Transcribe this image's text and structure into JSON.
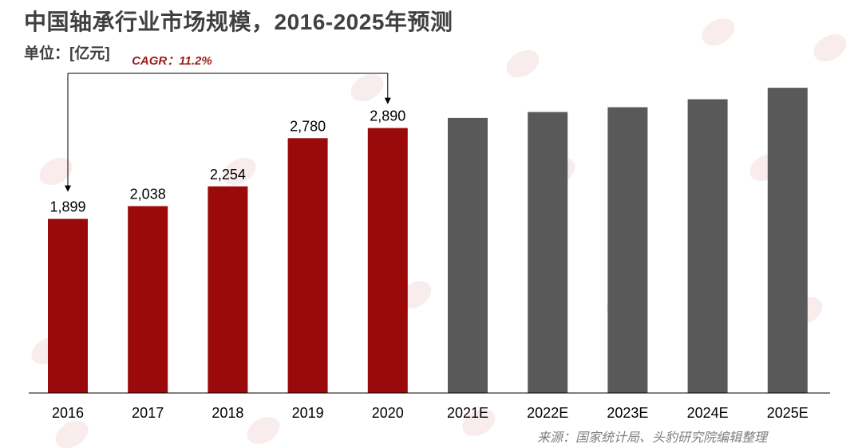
{
  "header": {
    "title": "中国轴承行业市场规模，2016-2025年预测",
    "unit": "单位：[亿元]"
  },
  "footer": {
    "source": "来源：国家统计局、头豹研究院编辑整理"
  },
  "colors": {
    "actual": "#9b0a0a",
    "forecast": "#595959",
    "axis": "#000000",
    "cagr_text": "#9b1b1b"
  },
  "chart_data": {
    "type": "bar",
    "title": "中国轴承行业市场规模，2016-2025年预测",
    "ylabel": "单位：[亿元]",
    "categories": [
      "2016",
      "2017",
      "2018",
      "2019",
      "2020",
      "2021E",
      "2022E",
      "2023E",
      "2024E",
      "2025E"
    ],
    "values": [
      1899,
      2038,
      2254,
      2780,
      2890,
      3001,
      3065,
      3117,
      3204,
      3330
    ],
    "data_labels": [
      "1,899",
      "2,038",
      "2,254",
      "2,780",
      "2,890",
      "",
      "",
      "",
      "",
      ""
    ],
    "series_type": [
      "actual",
      "actual",
      "actual",
      "actual",
      "actual",
      "forecast",
      "forecast",
      "forecast",
      "forecast",
      "forecast"
    ],
    "ylim": [
      0,
      3400
    ],
    "grid": false,
    "annotation": {
      "text": "CAGR：11.2%",
      "from_category": "2016",
      "to_category": "2020"
    }
  }
}
